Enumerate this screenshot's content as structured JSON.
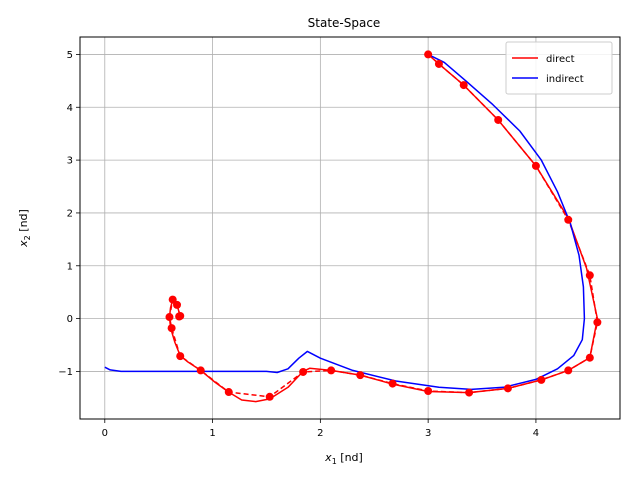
{
  "chart_data": {
    "type": "line",
    "title": "State-Space",
    "xlabel_main": "x",
    "xlabel_sub": "1",
    "xlabel_unit": " [nd]",
    "ylabel_main": "x",
    "ylabel_sub": "2",
    "ylabel_unit": " [nd]",
    "xlim": [
      -0.23,
      4.78
    ],
    "ylim": [
      -1.9,
      5.33
    ],
    "xticks": [
      0,
      1,
      2,
      3,
      4
    ],
    "yticks": [
      -1,
      0,
      1,
      2,
      3,
      4,
      5
    ],
    "grid": true,
    "legend_placement": "top-right",
    "series": [
      {
        "name": "direct",
        "color": "#ff0000",
        "style": "solid",
        "x": [
          3.0,
          3.1,
          3.33,
          3.65,
          4.0,
          4.3,
          4.47,
          4.57,
          4.5,
          4.3,
          4.05,
          3.74,
          3.38,
          3.0,
          2.67,
          2.37,
          2.1,
          1.9,
          1.84,
          1.7,
          1.53,
          1.4,
          1.27,
          1.15,
          1.02,
          0.89,
          0.77,
          0.7,
          0.65,
          0.61,
          0.6,
          0.61,
          0.63,
          0.67,
          0.7,
          0.69
        ],
        "y": [
          5.0,
          4.82,
          4.42,
          3.76,
          2.89,
          1.9,
          0.95,
          0.0,
          -0.74,
          -0.98,
          -1.16,
          -1.32,
          -1.4,
          -1.38,
          -1.24,
          -1.07,
          -0.98,
          -0.94,
          -1.0,
          -1.3,
          -1.52,
          -1.57,
          -1.54,
          -1.39,
          -1.2,
          -0.98,
          -0.82,
          -0.7,
          -0.45,
          -0.17,
          0.03,
          0.2,
          0.36,
          0.26,
          0.05,
          0.04
        ]
      },
      {
        "name": "",
        "color": "#ff0000",
        "style": "dashed",
        "x": [
          3.0,
          3.1,
          3.33,
          3.65,
          4.0,
          4.3,
          4.5,
          4.57,
          4.5,
          4.3,
          4.05,
          3.74,
          3.38,
          3.0,
          2.67,
          2.37,
          2.1,
          1.84,
          1.53,
          1.15,
          0.89,
          0.7,
          0.62,
          0.6,
          0.63,
          0.67,
          0.7,
          0.69
        ],
        "y": [
          5.0,
          4.82,
          4.42,
          3.76,
          2.89,
          1.87,
          0.82,
          -0.07,
          -0.74,
          -0.98,
          -1.16,
          -1.32,
          -1.4,
          -1.37,
          -1.23,
          -1.07,
          -0.98,
          -1.01,
          -1.48,
          -1.39,
          -0.98,
          -0.71,
          -0.18,
          0.03,
          0.36,
          0.26,
          0.05,
          0.04
        ]
      },
      {
        "name": "indirect",
        "color": "#0000ff",
        "style": "solid",
        "x": [
          0.0,
          0.05,
          0.15,
          0.3,
          0.6,
          1.0,
          1.5,
          1.6,
          1.7,
          1.8,
          1.88,
          2.0,
          2.3,
          2.7,
          3.1,
          3.4,
          3.7,
          4.0,
          4.2,
          4.35,
          4.43,
          4.45,
          4.44,
          4.4,
          4.32,
          4.2,
          4.05,
          3.85,
          3.6,
          3.35,
          3.15,
          3.0
        ],
        "y": [
          -0.92,
          -0.97,
          -1.0,
          -1.0,
          -1.0,
          -1.0,
          -1.0,
          -1.02,
          -0.95,
          -0.75,
          -0.62,
          -0.75,
          -0.98,
          -1.18,
          -1.3,
          -1.34,
          -1.3,
          -1.15,
          -0.95,
          -0.7,
          -0.4,
          0.0,
          0.6,
          1.2,
          1.8,
          2.4,
          3.0,
          3.55,
          4.05,
          4.5,
          4.85,
          5.0
        ]
      }
    ],
    "markers": {
      "color": "#ff0000",
      "x": [
        3.0,
        3.1,
        3.33,
        3.65,
        4.0,
        4.3,
        4.5,
        4.57,
        4.5,
        4.3,
        4.05,
        3.74,
        3.38,
        3.0,
        2.67,
        2.37,
        2.1,
        1.84,
        1.53,
        1.15,
        0.89,
        0.7,
        0.62,
        0.6,
        0.63,
        0.67,
        0.7,
        0.69
      ],
      "y": [
        5.0,
        4.82,
        4.42,
        3.76,
        2.89,
        1.87,
        0.82,
        -0.07,
        -0.74,
        -0.98,
        -1.16,
        -1.32,
        -1.4,
        -1.37,
        -1.23,
        -1.07,
        -0.98,
        -1.01,
        -1.48,
        -1.39,
        -0.98,
        -0.71,
        -0.18,
        0.03,
        0.36,
        0.26,
        0.05,
        0.04
      ]
    }
  }
}
